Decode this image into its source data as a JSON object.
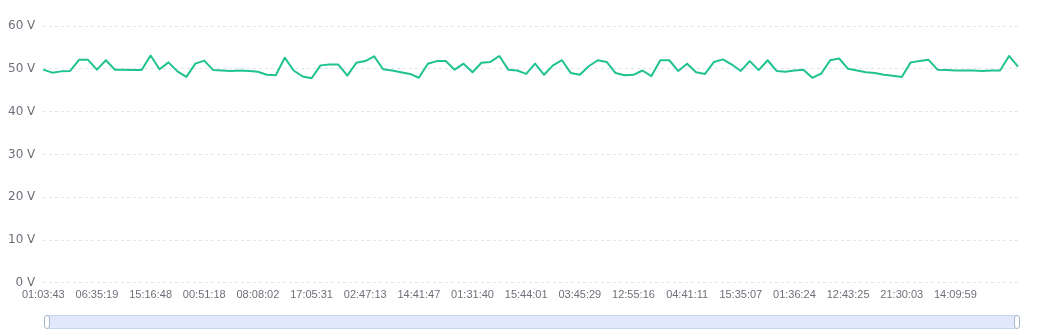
{
  "chart_data": {
    "type": "line",
    "categories": [
      "01:03:43",
      null,
      null,
      null,
      null,
      null,
      "06:35:19",
      null,
      null,
      null,
      null,
      null,
      "15:16:48",
      null,
      null,
      null,
      null,
      null,
      "00:51:18",
      null,
      null,
      null,
      null,
      null,
      "08:08:02",
      null,
      null,
      null,
      null,
      null,
      "17:05:31",
      null,
      null,
      null,
      null,
      null,
      "02:47:13",
      null,
      null,
      null,
      null,
      null,
      "14:41:47",
      null,
      null,
      null,
      null,
      null,
      "01:31:40",
      null,
      null,
      null,
      null,
      null,
      "15:44:01",
      null,
      null,
      null,
      null,
      null,
      "03:45:29",
      null,
      null,
      null,
      null,
      null,
      "12:55:16",
      null,
      null,
      null,
      null,
      null,
      "04:41:11",
      null,
      null,
      null,
      null,
      null,
      "15:35:07",
      null,
      null,
      null,
      null,
      null,
      "01:36:24",
      null,
      null,
      null,
      null,
      null,
      "12:43:25",
      null,
      null,
      null,
      null,
      null,
      "21:30:03",
      null,
      null,
      null,
      null,
      null,
      "14:09:59",
      null,
      null,
      null,
      null,
      null,
      null,
      null
    ],
    "series": [
      {
        "color": "#20c290",
        "values": [
          49.8,
          49.1,
          49.4,
          49.5,
          52.1,
          52.1,
          49.8,
          52,
          49.8,
          49.8,
          49.7,
          49.7,
          53.1,
          49.9,
          51.5,
          49.4,
          48.1,
          51.2,
          51.9,
          49.7,
          49.6,
          49.5,
          49.6,
          49.5,
          49.3,
          48.6,
          48.5,
          52.6,
          49.6,
          48.2,
          47.8,
          50.8,
          51,
          51,
          48.4,
          51.4,
          51.8,
          52.9,
          49.9,
          49.6,
          49.2,
          48.8,
          47.9,
          51.2,
          51.8,
          51.8,
          49.8,
          51.2,
          49.2,
          51.4,
          51.6,
          53,
          49.8,
          49.6,
          48.8,
          51.2,
          48.6,
          50.8,
          52,
          49,
          48.6,
          50.6,
          52,
          51.6,
          49,
          48.5,
          48.6,
          49.6,
          48.3,
          52,
          52,
          49.5,
          51.2,
          49.2,
          48.8,
          51.6,
          52.2,
          51,
          49.5,
          51.8,
          49.7,
          52,
          49.5,
          49.3,
          49.6,
          49.8,
          47.9,
          48.9,
          52,
          52.4,
          50,
          49.6,
          49.2,
          49,
          48.6,
          48.4,
          48.1,
          51.5,
          51.8,
          52.1,
          49.8,
          49.7,
          49.6,
          49.6,
          49.6,
          49.5,
          49.6,
          49.6,
          53,
          50.5
        ]
      }
    ],
    "ylim": [
      0,
      60
    ],
    "yticks": [
      {
        "value": 0,
        "label": "0 V"
      },
      {
        "value": 10,
        "label": "10 V"
      },
      {
        "value": 20,
        "label": "20 V"
      },
      {
        "value": 30,
        "label": "30 V"
      },
      {
        "value": 40,
        "label": "40 V"
      },
      {
        "value": 50,
        "label": "50 V"
      },
      {
        "value": 60,
        "label": "60 V"
      }
    ],
    "grid": "y",
    "marker": "none",
    "line_style": "solid"
  }
}
